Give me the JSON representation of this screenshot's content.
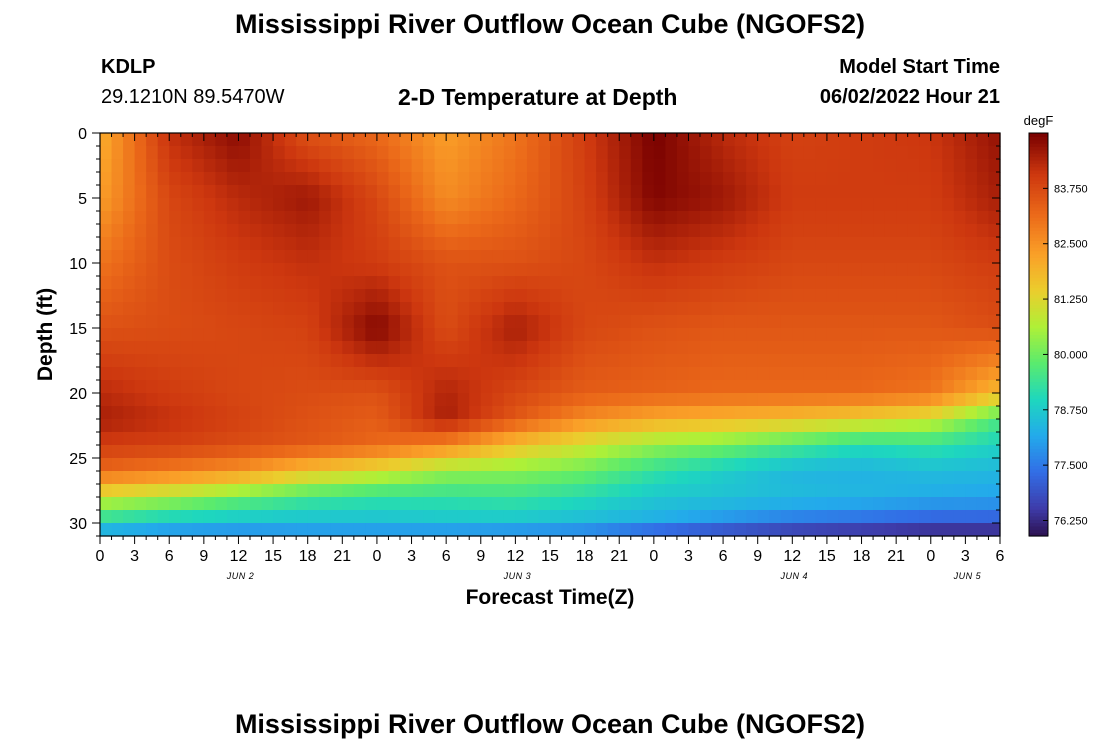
{
  "page": {
    "title": "Mississippi River Outflow Ocean Cube (NGOFS2)",
    "footer_title": "Mississippi River Outflow Ocean Cube (NGOFS2)",
    "station_id": "KDLP",
    "station_coords": "29.1210N  89.5470W",
    "model_start_label": "Model Start Time",
    "model_start_value": "06/02/2022 Hour 21"
  },
  "chart_data": {
    "type": "heatmap",
    "title": "2-D Temperature at Depth",
    "xlabel": "Forecast Time(Z)",
    "ylabel": "Depth (ft)",
    "x_ticks": [
      "0",
      "3",
      "6",
      "9",
      "12",
      "15",
      "18",
      "21",
      "0",
      "3",
      "6",
      "9",
      "12",
      "15",
      "18",
      "21",
      "0",
      "3",
      "6",
      "9",
      "12",
      "15",
      "18",
      "21",
      "0",
      "3",
      "6"
    ],
    "day_labels": [
      {
        "label": "JUN 2",
        "tick_index": 4
      },
      {
        "label": "JUN 3",
        "tick_index": 12
      },
      {
        "label": "JUN 4",
        "tick_index": 20
      },
      {
        "label": "JUN 5",
        "tick_index": 25
      }
    ],
    "x_range_hours": [
      0,
      78
    ],
    "y_ticks": [
      0,
      5,
      10,
      15,
      20,
      25,
      30
    ],
    "y_range_ft": [
      0,
      31
    ],
    "y_inverted": true,
    "colorbar": {
      "unit": "degF",
      "tick_labels": [
        "83.750",
        "82.500",
        "81.250",
        "80.000",
        "78.750",
        "77.500",
        "76.250"
      ],
      "tick_values": [
        83.75,
        82.5,
        81.25,
        80.0,
        78.75,
        77.5,
        76.25
      ],
      "range": [
        75.9,
        85.0
      ]
    },
    "grid": {
      "times_h": [
        0,
        6,
        12,
        18,
        24,
        30,
        36,
        42,
        48,
        54,
        60,
        66,
        72,
        78
      ],
      "depths_ft": [
        0,
        5,
        10,
        15,
        20,
        22,
        24,
        26,
        28,
        30,
        31
      ],
      "temps_degF": [
        [
          82.0,
          84.2,
          84.8,
          83.6,
          83.2,
          82.3,
          83.0,
          84.0,
          85.0,
          84.3,
          83.9,
          84.0,
          84.1,
          84.7
        ],
        [
          82.3,
          83.8,
          84.3,
          84.6,
          83.8,
          82.6,
          83.2,
          83.9,
          84.9,
          84.6,
          84.0,
          84.0,
          84.0,
          84.5
        ],
        [
          83.0,
          83.7,
          84.0,
          84.2,
          84.0,
          83.6,
          83.6,
          83.8,
          84.2,
          84.0,
          83.8,
          83.8,
          83.8,
          84.0
        ],
        [
          83.6,
          83.7,
          83.8,
          83.9,
          84.9,
          83.7,
          84.5,
          83.8,
          83.6,
          83.5,
          83.5,
          83.5,
          83.5,
          83.7
        ],
        [
          84.3,
          84.0,
          83.8,
          83.7,
          83.6,
          84.4,
          83.8,
          83.4,
          83.3,
          83.2,
          83.2,
          83.2,
          83.0,
          81.8
        ],
        [
          84.5,
          84.2,
          83.9,
          83.6,
          83.4,
          84.5,
          83.5,
          82.6,
          82.1,
          81.9,
          81.7,
          81.4,
          81.0,
          79.6
        ],
        [
          84.0,
          83.9,
          83.7,
          83.5,
          83.2,
          82.7,
          81.7,
          81.0,
          80.4,
          80.1,
          79.6,
          79.1,
          79.3,
          78.9
        ],
        [
          83.2,
          82.9,
          82.5,
          81.7,
          81.1,
          80.4,
          80.3,
          80.0,
          79.3,
          78.8,
          78.4,
          78.3,
          78.5,
          78.4
        ],
        [
          81.0,
          80.6,
          80.0,
          79.5,
          79.3,
          79.3,
          79.4,
          79.1,
          78.7,
          78.6,
          78.5,
          78.4,
          78.2,
          78.1
        ],
        [
          79.0,
          78.6,
          78.5,
          78.5,
          78.5,
          78.6,
          78.6,
          78.4,
          78.2,
          77.8,
          77.4,
          77.2,
          77.0,
          77.0
        ],
        [
          77.8,
          77.6,
          77.5,
          77.6,
          77.6,
          77.5,
          77.4,
          77.3,
          76.6,
          76.3,
          76.1,
          76.0,
          75.9,
          75.9
        ]
      ]
    }
  }
}
